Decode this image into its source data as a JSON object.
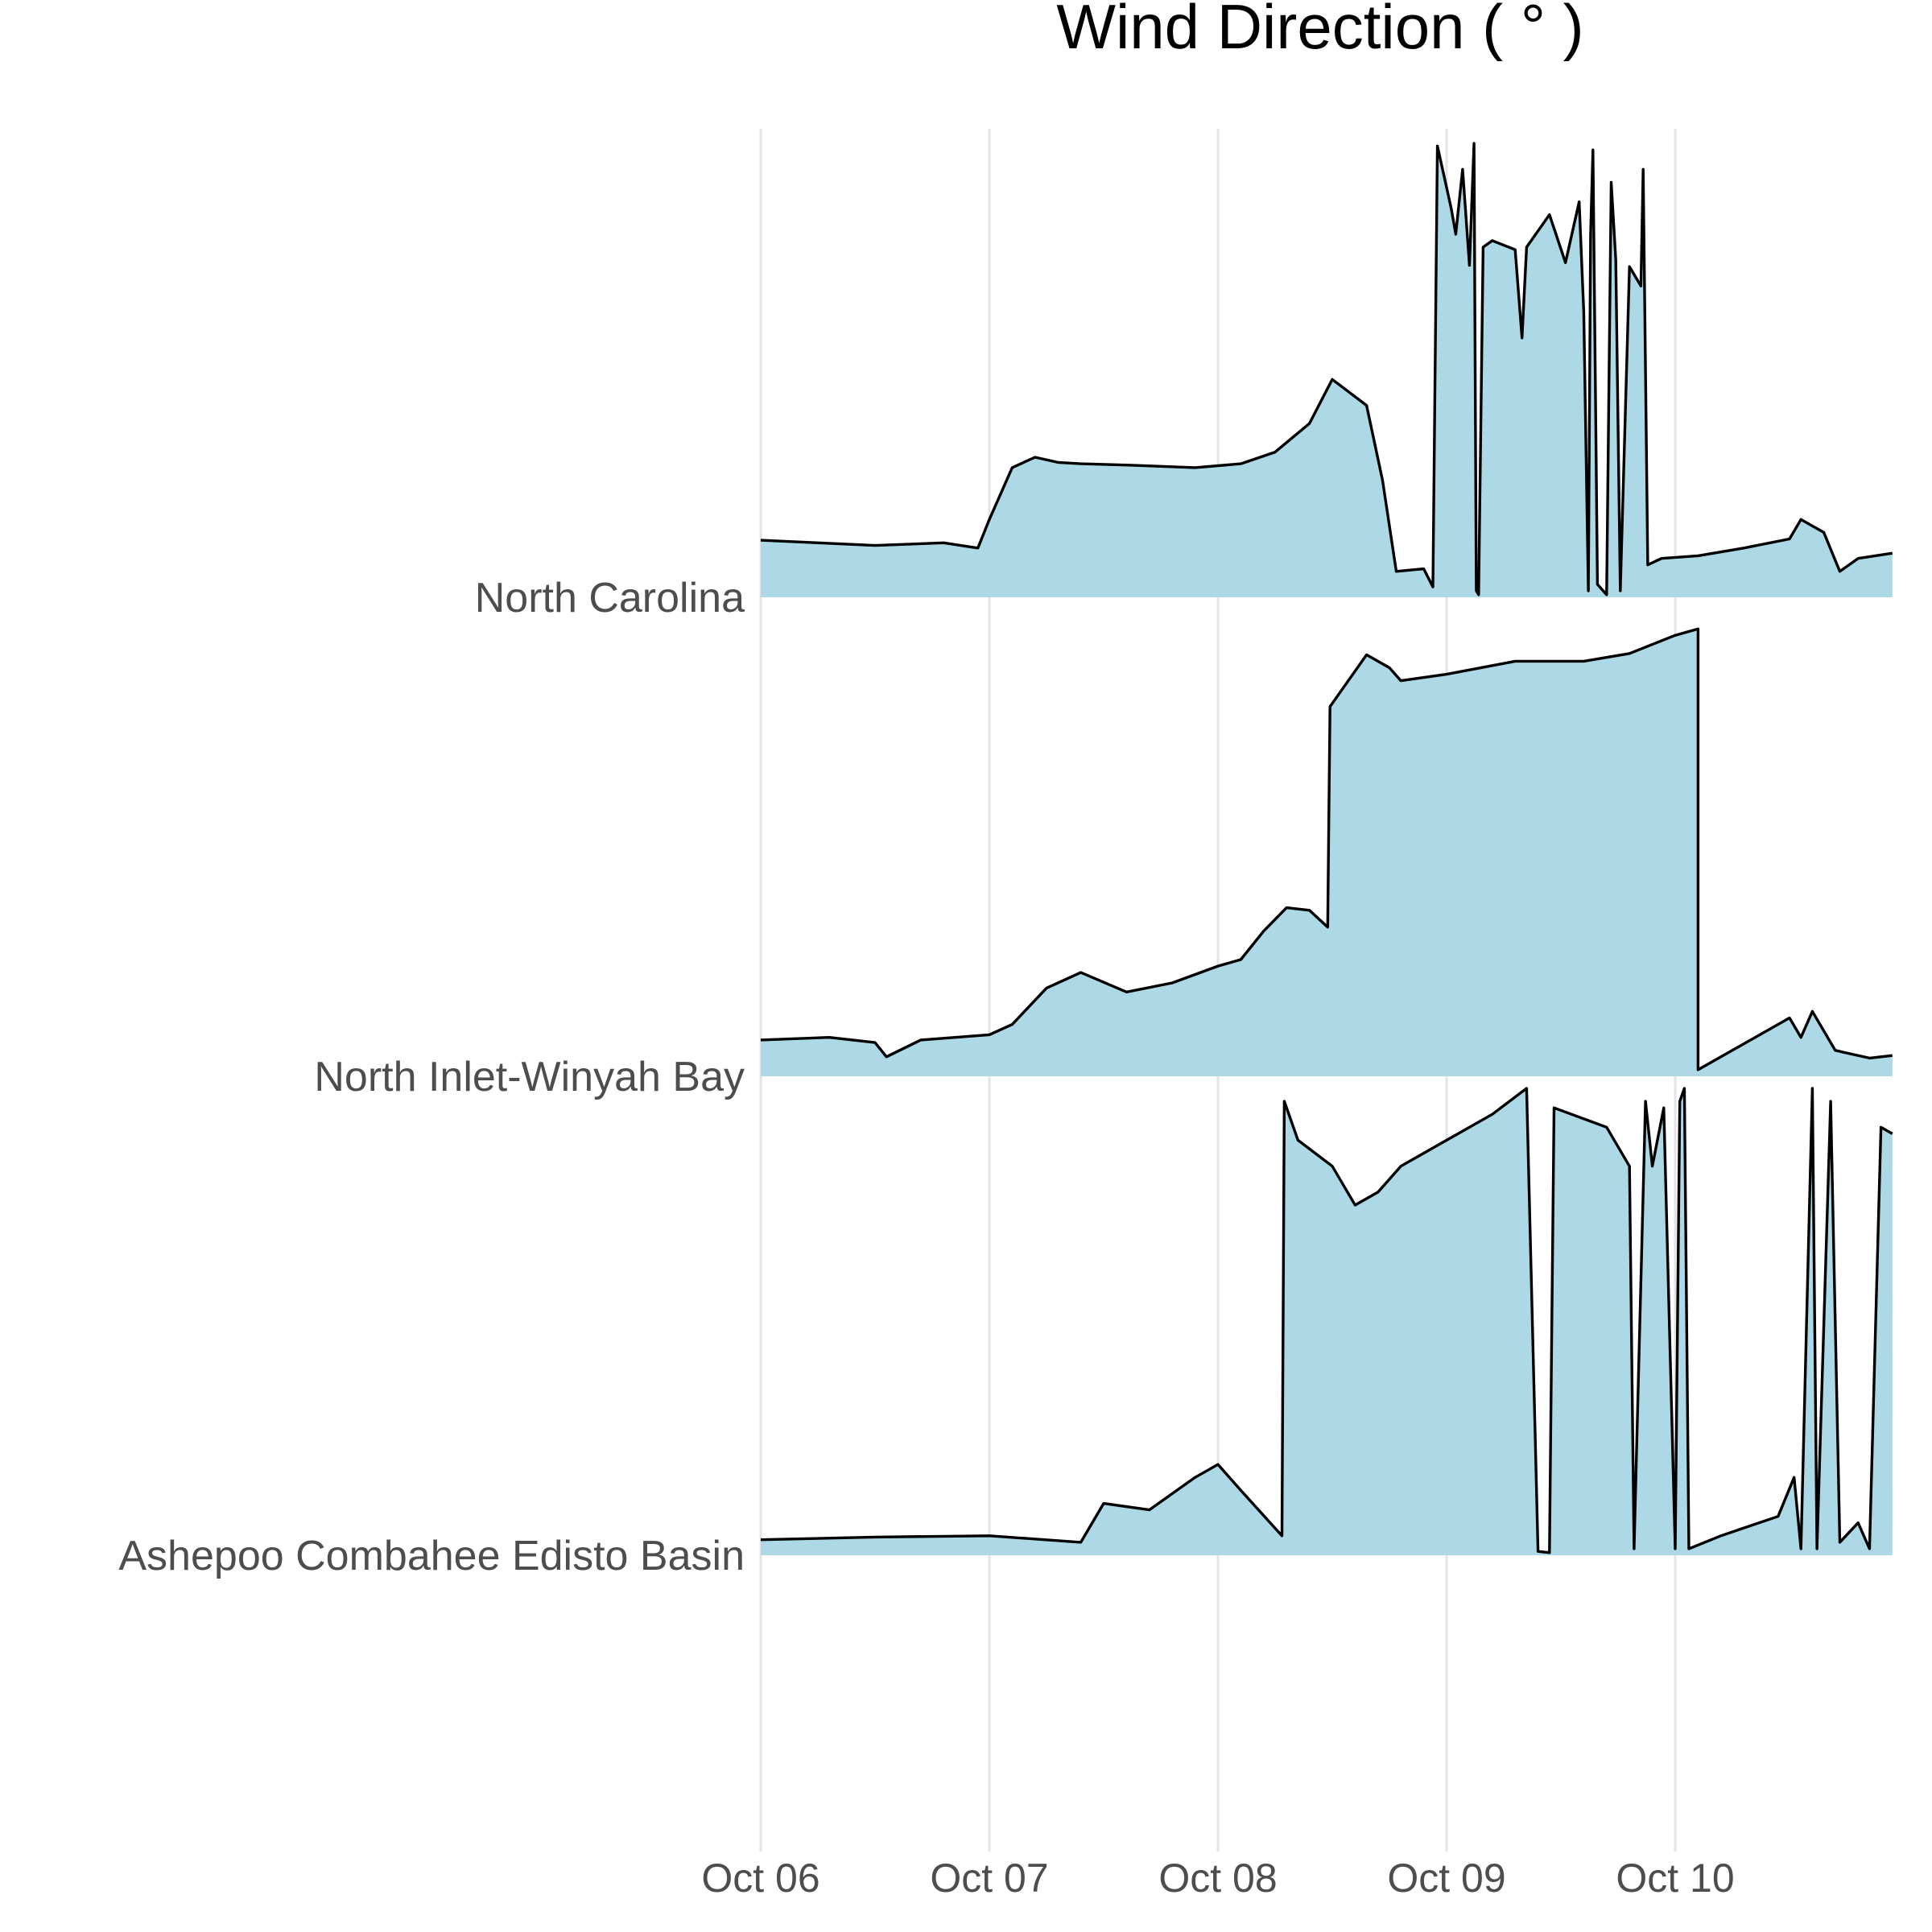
{
  "chart_data": {
    "type": "area",
    "subtype": "ridgeline",
    "title": "Wind Direction ( ° )",
    "xlabel": "",
    "ylabel": "",
    "x_tick_labels": [
      "Oct 06",
      "Oct 07",
      "Oct 08",
      "Oct 09",
      "Oct 10"
    ],
    "x_domain_days": [
      0,
      4.95
    ],
    "y_range": [
      0,
      360
    ],
    "fill_color": "#ADD8E6",
    "line_color": "#000000",
    "grid": "vertical only",
    "series": [
      {
        "name": "North Carolina",
        "points": [
          [
            0,
            44
          ],
          [
            0.25,
            42
          ],
          [
            0.5,
            40
          ],
          [
            0.8,
            42
          ],
          [
            0.95,
            38
          ],
          [
            1.0,
            60
          ],
          [
            1.1,
            100
          ],
          [
            1.2,
            108
          ],
          [
            1.3,
            104
          ],
          [
            1.4,
            103
          ],
          [
            1.6,
            102
          ],
          [
            1.9,
            100
          ],
          [
            2.1,
            103
          ],
          [
            2.25,
            112
          ],
          [
            2.4,
            134
          ],
          [
            2.5,
            168
          ],
          [
            2.65,
            148
          ],
          [
            2.72,
            90
          ],
          [
            2.78,
            20
          ],
          [
            2.9,
            22
          ],
          [
            2.94,
            8
          ],
          [
            2.96,
            348
          ],
          [
            3.02,
            300
          ],
          [
            3.04,
            280
          ],
          [
            3.07,
            330
          ],
          [
            3.1,
            256
          ],
          [
            3.12,
            350
          ],
          [
            3.13,
            5
          ],
          [
            3.14,
            2
          ],
          [
            3.16,
            270
          ],
          [
            3.2,
            275
          ],
          [
            3.3,
            268
          ],
          [
            3.33,
            200
          ],
          [
            3.35,
            270
          ],
          [
            3.45,
            295
          ],
          [
            3.52,
            258
          ],
          [
            3.58,
            305
          ],
          [
            3.6,
            220
          ],
          [
            3.62,
            5
          ],
          [
            3.63,
            280
          ],
          [
            3.64,
            345
          ],
          [
            3.66,
            10
          ],
          [
            3.7,
            2
          ],
          [
            3.72,
            320
          ],
          [
            3.74,
            260
          ],
          [
            3.76,
            5
          ],
          [
            3.8,
            255
          ],
          [
            3.85,
            240
          ],
          [
            3.86,
            330
          ],
          [
            3.88,
            25
          ],
          [
            3.94,
            30
          ],
          [
            4.1,
            32
          ],
          [
            4.3,
            38
          ],
          [
            4.5,
            45
          ],
          [
            4.55,
            60
          ],
          [
            4.65,
            50
          ],
          [
            4.72,
            20
          ],
          [
            4.8,
            30
          ],
          [
            4.95,
            34
          ]
        ]
      },
      {
        "name": "North Inlet-Winyah Bay",
        "points": [
          [
            0,
            28
          ],
          [
            0.3,
            30
          ],
          [
            0.5,
            26
          ],
          [
            0.55,
            15
          ],
          [
            0.7,
            28
          ],
          [
            1.0,
            32
          ],
          [
            1.1,
            40
          ],
          [
            1.25,
            68
          ],
          [
            1.4,
            80
          ],
          [
            1.6,
            65
          ],
          [
            1.8,
            72
          ],
          [
            2.0,
            85
          ],
          [
            2.1,
            90
          ],
          [
            2.2,
            112
          ],
          [
            2.3,
            130
          ],
          [
            2.4,
            128
          ],
          [
            2.48,
            115
          ],
          [
            2.49,
            285
          ],
          [
            2.55,
            300
          ],
          [
            2.65,
            325
          ],
          [
            2.75,
            315
          ],
          [
            2.8,
            305
          ],
          [
            3.0,
            310
          ],
          [
            3.3,
            320
          ],
          [
            3.6,
            320
          ],
          [
            3.8,
            326
          ],
          [
            4.0,
            340
          ],
          [
            4.1,
            345
          ],
          [
            4.1,
            5
          ],
          [
            4.3,
            25
          ],
          [
            4.5,
            45
          ],
          [
            4.55,
            30
          ],
          [
            4.6,
            50
          ],
          [
            4.7,
            20
          ],
          [
            4.85,
            14
          ],
          [
            4.95,
            16
          ]
        ]
      },
      {
        "name": "Ashepoo Combahee Edisto Basin",
        "points": [
          [
            0,
            12
          ],
          [
            0.5,
            14
          ],
          [
            1.0,
            15
          ],
          [
            1.4,
            10
          ],
          [
            1.5,
            40
          ],
          [
            1.7,
            35
          ],
          [
            1.9,
            60
          ],
          [
            2.0,
            70
          ],
          [
            2.1,
            50
          ],
          [
            2.28,
            15
          ],
          [
            2.29,
            350
          ],
          [
            2.35,
            320
          ],
          [
            2.5,
            300
          ],
          [
            2.6,
            270
          ],
          [
            2.7,
            280
          ],
          [
            2.8,
            300
          ],
          [
            3.0,
            320
          ],
          [
            3.2,
            340
          ],
          [
            3.35,
            360
          ],
          [
            3.4,
            3
          ],
          [
            3.45,
            2
          ],
          [
            3.47,
            345
          ],
          [
            3.7,
            330
          ],
          [
            3.8,
            300
          ],
          [
            3.82,
            5
          ],
          [
            3.87,
            350
          ],
          [
            3.9,
            300
          ],
          [
            3.95,
            345
          ],
          [
            4.0,
            5
          ],
          [
            4.02,
            350
          ],
          [
            4.04,
            360
          ],
          [
            4.06,
            5
          ],
          [
            4.2,
            15
          ],
          [
            4.45,
            30
          ],
          [
            4.52,
            60
          ],
          [
            4.55,
            5
          ],
          [
            4.6,
            360
          ],
          [
            4.62,
            5
          ],
          [
            4.68,
            350
          ],
          [
            4.72,
            10
          ],
          [
            4.8,
            25
          ],
          [
            4.85,
            5
          ],
          [
            4.9,
            330
          ],
          [
            4.95,
            325
          ]
        ]
      }
    ]
  }
}
